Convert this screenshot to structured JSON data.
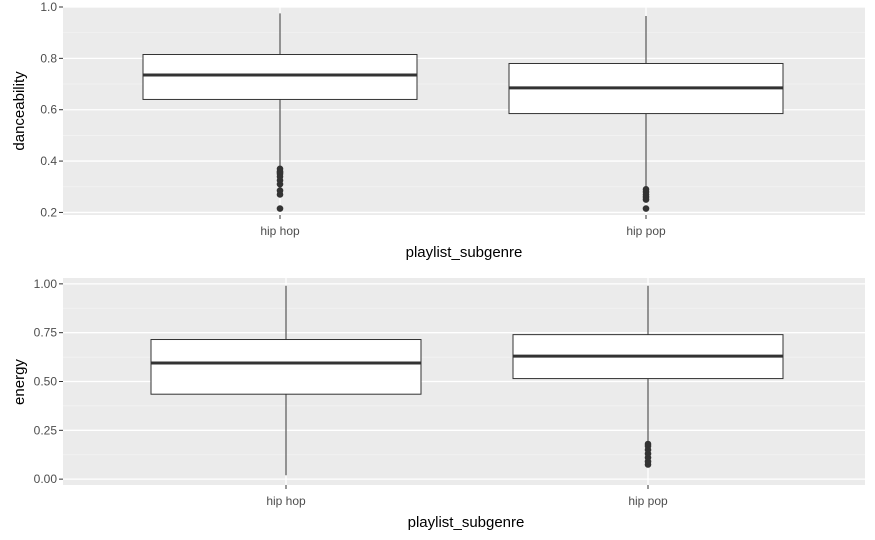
{
  "chart_data": [
    {
      "type": "boxplot",
      "xlabel": "playlist_subgenre",
      "ylabel": "danceability",
      "ylim": [
        0.19,
        1.0
      ],
      "yticks": [
        0.2,
        0.4,
        0.6,
        0.8,
        1.0
      ],
      "ytick_labels": [
        "0.2",
        "0.4",
        "0.6",
        "0.8",
        "1.0"
      ],
      "categories": [
        "hip hop",
        "hip pop"
      ],
      "boxes": [
        {
          "category": "hip hop",
          "whisker_low": 0.38,
          "q1": 0.64,
          "median": 0.735,
          "q3": 0.815,
          "whisker_high": 0.975,
          "outliers": [
            0.215,
            0.27,
            0.285,
            0.31,
            0.325,
            0.34,
            0.35,
            0.355,
            0.36,
            0.37
          ]
        },
        {
          "category": "hip pop",
          "whisker_low": 0.3,
          "q1": 0.585,
          "median": 0.685,
          "q3": 0.78,
          "whisker_high": 0.965,
          "outliers": [
            0.215,
            0.25,
            0.26,
            0.27,
            0.28,
            0.29
          ]
        }
      ],
      "grid": true,
      "legend": "none"
    },
    {
      "type": "boxplot",
      "xlabel": "playlist_subgenre",
      "ylabel": "energy",
      "ylim": [
        -0.03,
        1.03
      ],
      "yticks": [
        0.0,
        0.25,
        0.5,
        0.75,
        1.0
      ],
      "ytick_labels": [
        "0.00",
        "0.25",
        "0.50",
        "0.75",
        "1.00"
      ],
      "categories": [
        "hip hop",
        "hip pop"
      ],
      "boxes": [
        {
          "category": "hip hop",
          "whisker_low": 0.02,
          "q1": 0.435,
          "median": 0.595,
          "q3": 0.715,
          "whisker_high": 0.99,
          "outliers": []
        },
        {
          "category": "hip pop",
          "whisker_low": 0.19,
          "q1": 0.515,
          "median": 0.63,
          "q3": 0.74,
          "whisker_high": 0.99,
          "outliers": [
            0.075,
            0.09,
            0.11,
            0.13,
            0.15,
            0.17,
            0.18
          ]
        }
      ],
      "grid": true,
      "legend": "none"
    }
  ]
}
